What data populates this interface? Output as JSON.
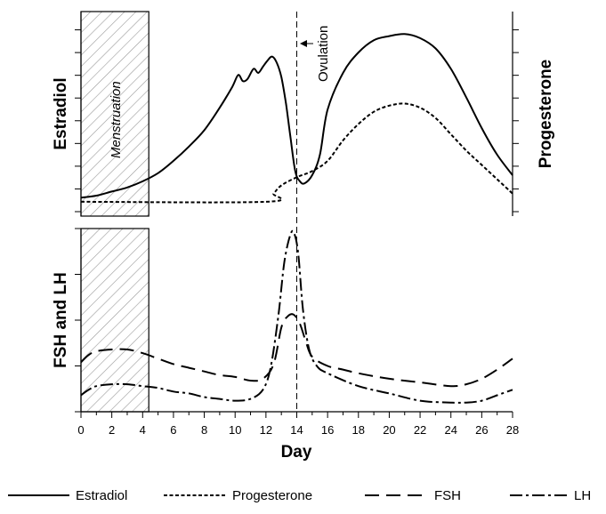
{
  "chart_data": [
    {
      "type": "line",
      "panel": "top",
      "ylabel_left": "Estradiol",
      "ylabel_right": "Progesterone",
      "xlim": [
        0,
        28
      ],
      "ylim": [
        0,
        100
      ],
      "series": [
        {
          "name": "Estradiol",
          "style": "solid",
          "x": [
            0,
            1,
            2,
            3,
            4,
            5,
            6,
            7,
            8,
            9,
            9.8,
            10.2,
            10.5,
            10.8,
            11.2,
            11.5,
            11.8,
            12.1,
            12.4,
            12.7,
            13.0,
            13.3,
            13.6,
            13.9,
            14.2,
            14.5,
            15.0,
            15.5,
            16,
            17,
            18,
            19,
            20,
            21,
            22,
            23,
            24,
            25,
            26,
            27,
            28
          ],
          "y": [
            9,
            10,
            12,
            14,
            17,
            21,
            27,
            34,
            42,
            53,
            63,
            69,
            66,
            67,
            72,
            70,
            73,
            76,
            78,
            75,
            68,
            55,
            38,
            22,
            17,
            16,
            20,
            30,
            52,
            70,
            80,
            86,
            88,
            89,
            87,
            82,
            72,
            58,
            43,
            30,
            20
          ]
        },
        {
          "name": "Progesterone",
          "style": "dotted",
          "x": [
            0,
            12,
            12.5,
            13,
            14,
            15,
            16,
            17,
            18,
            19,
            20,
            21,
            22,
            23,
            24,
            25,
            26,
            27,
            28
          ],
          "y": [
            7,
            7,
            11,
            15,
            19,
            22,
            27,
            37,
            45,
            51,
            54,
            55,
            53,
            48,
            40,
            32,
            25,
            18,
            11
          ]
        }
      ]
    },
    {
      "type": "line",
      "panel": "bottom",
      "ylabel": "FSH and LH",
      "xlabel": "Day",
      "xlim": [
        0,
        28
      ],
      "ylim": [
        0,
        100
      ],
      "x_ticks": [
        "0",
        "2",
        "4",
        "6",
        "8",
        "10",
        "12",
        "14",
        "16",
        "18",
        "20",
        "22",
        "24",
        "26",
        "28"
      ],
      "series": [
        {
          "name": "FSH",
          "style": "dashed",
          "x": [
            0,
            0.5,
            1,
            2,
            3,
            4,
            5,
            6,
            7,
            8,
            9,
            10,
            11,
            11.8,
            12.5,
            13,
            13.4,
            13.8,
            14.2,
            14.6,
            15,
            16,
            17,
            18,
            20,
            22,
            24,
            25,
            26,
            27,
            28
          ],
          "y": [
            27,
            31,
            33,
            34,
            34,
            32,
            29,
            26,
            24,
            22,
            20,
            19,
            17,
            18,
            26,
            46,
            52,
            53,
            48,
            38,
            30,
            25,
            23,
            21,
            18,
            16,
            14,
            15,
            18,
            23,
            29
          ]
        },
        {
          "name": "LH",
          "style": "dash-dot",
          "x": [
            0,
            0.5,
            1,
            2,
            3,
            4,
            5,
            6,
            7,
            8,
            9,
            10,
            11,
            11.8,
            12.3,
            12.8,
            13.2,
            13.6,
            13.85,
            14.1,
            14.4,
            14.8,
            15.3,
            16,
            18,
            20,
            22,
            24,
            25,
            26,
            27,
            28
          ],
          "y": [
            9,
            12,
            14,
            15,
            15,
            14,
            13,
            11,
            10,
            8,
            7,
            6,
            7,
            12,
            24,
            52,
            82,
            97,
            97,
            86,
            56,
            34,
            25,
            21,
            14,
            10,
            6,
            5,
            5,
            6,
            9,
            12
          ]
        }
      ]
    }
  ],
  "annotations": {
    "menstruation": "Menstruation",
    "ovulation": "Ovulation",
    "menstruation_range": [
      0,
      4.4
    ],
    "ovulation_day": 14
  },
  "legend": {
    "placement": "bottom",
    "items": [
      {
        "label": "Estradiol",
        "style": "solid"
      },
      {
        "label": "Progesterone",
        "style": "dotted"
      },
      {
        "label": "FSH",
        "style": "dashed"
      },
      {
        "label": "LH",
        "style": "dash-dot"
      }
    ]
  }
}
